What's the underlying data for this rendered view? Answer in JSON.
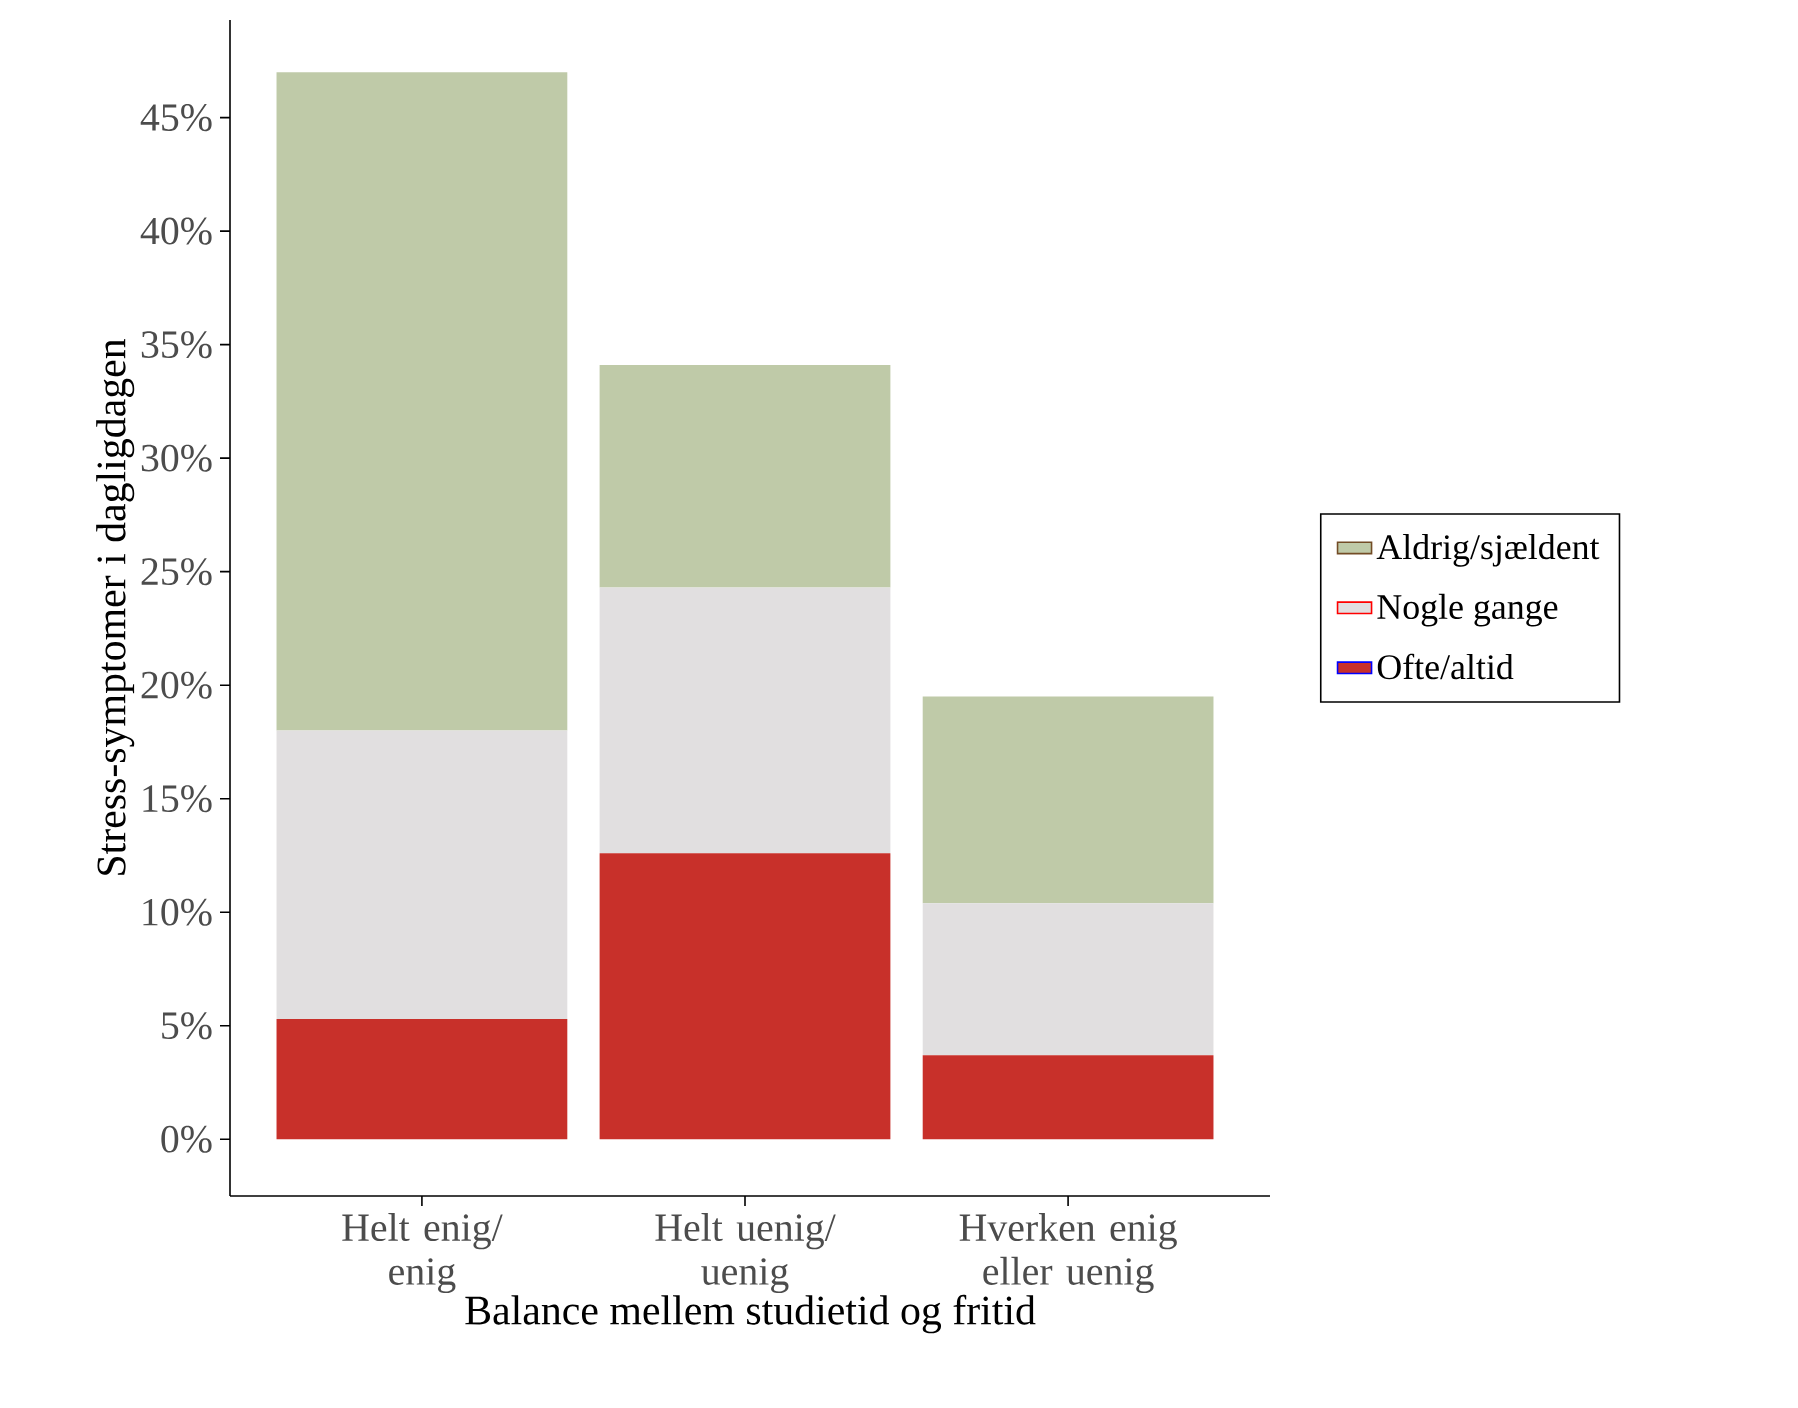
{
  "chart_data": {
    "type": "bar",
    "stacked": true,
    "xlabel": "Balance mellem studietid og fritid",
    "ylabel": "Stress-symptomer i dagligdagen",
    "categories": [
      "Helt enig/ enig",
      "Helt uenig/ uenig",
      "Hverken enig eller uenig"
    ],
    "series": [
      {
        "name": "Ofte/altid",
        "color": "#c8302a",
        "values": [
          5.3,
          12.6,
          3.7
        ]
      },
      {
        "name": "Nogle gange",
        "color": "#e1dfe0",
        "values": [
          12.7,
          11.7,
          6.7
        ]
      },
      {
        "name": "Aldrig/sjældent",
        "color": "#bfcaa8",
        "values": [
          29.0,
          9.8,
          9.1
        ]
      }
    ],
    "ylim": [
      -2.5,
      49.3
    ],
    "yticks": [
      {
        "value": 0,
        "label": "0%"
      },
      {
        "value": 5,
        "label": "5%"
      },
      {
        "value": 10,
        "label": "10%"
      },
      {
        "value": 15,
        "label": "15%"
      },
      {
        "value": 20,
        "label": "20%"
      },
      {
        "value": 25,
        "label": "25%"
      },
      {
        "value": 30,
        "label": "30%"
      },
      {
        "value": 35,
        "label": "35%"
      },
      {
        "value": 40,
        "label": "40%"
      },
      {
        "value": 45,
        "label": "45%"
      }
    ],
    "grid": false,
    "legend": "right"
  }
}
